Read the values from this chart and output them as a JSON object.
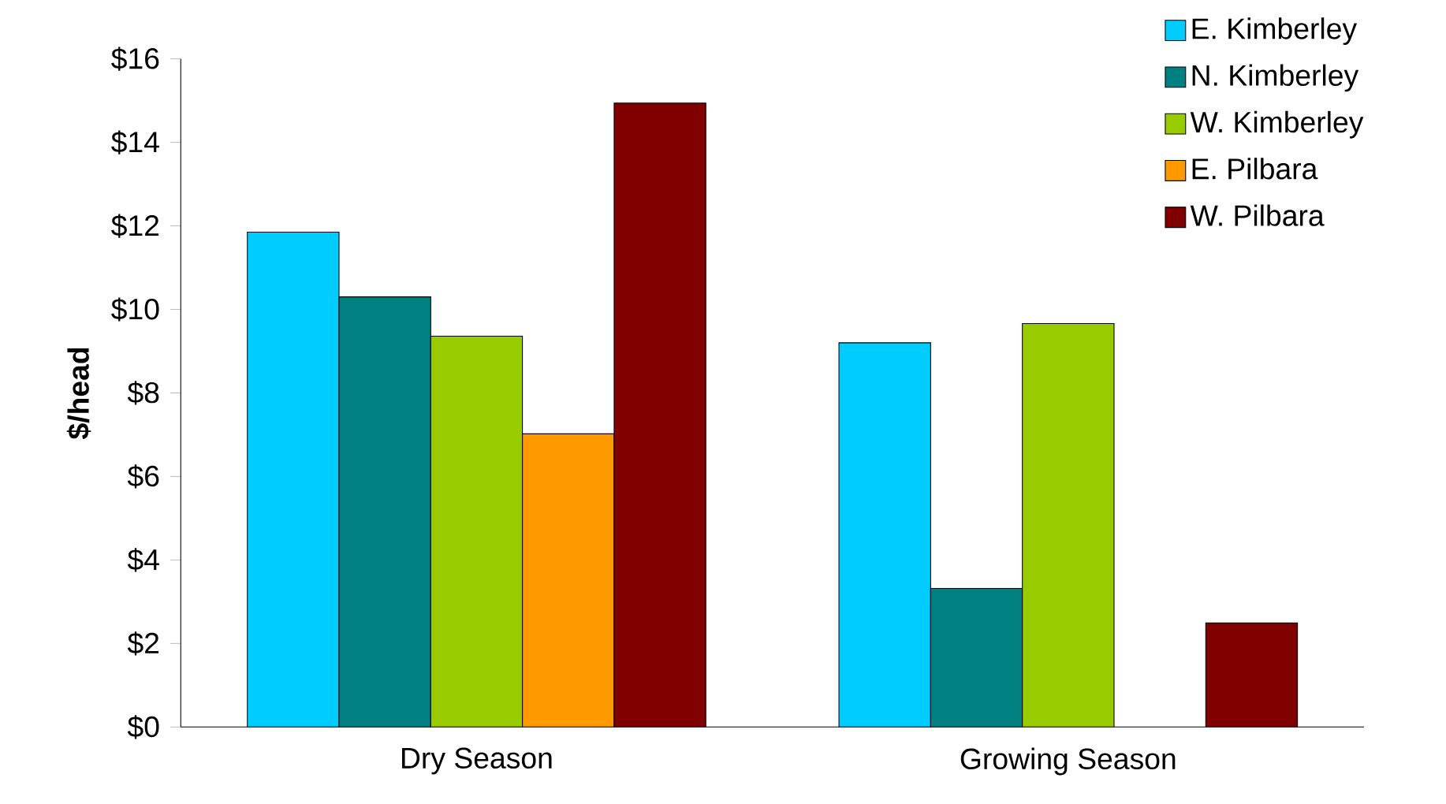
{
  "chart_data": {
    "type": "bar",
    "ylabel": "$/head",
    "categories": [
      "Dry Season",
      "Growing Season"
    ],
    "series": [
      {
        "name": "E. Kimberley",
        "color": "#00ccff",
        "values": [
          11.85,
          9.2
        ]
      },
      {
        "name": "N. Kimberley",
        "color": "#008080",
        "values": [
          10.3,
          3.32
        ]
      },
      {
        "name": "W. Kimberley",
        "color": "#99cc00",
        "values": [
          9.36,
          9.66
        ]
      },
      {
        "name": "E. Pilbara",
        "color": "#ff9900",
        "values": [
          7.02,
          null
        ]
      },
      {
        "name": "W. Pilbara",
        "color": "#800000",
        "values": [
          14.94,
          2.49
        ]
      }
    ],
    "ylim": [
      0,
      16
    ],
    "yticks": [
      {
        "value": 0,
        "label": "$0"
      },
      {
        "value": 2,
        "label": "$2"
      },
      {
        "value": 4,
        "label": "$4"
      },
      {
        "value": 6,
        "label": "$6"
      },
      {
        "value": 8,
        "label": "$8"
      },
      {
        "value": 10,
        "label": "$10"
      },
      {
        "value": 12,
        "label": "$12"
      },
      {
        "value": 14,
        "label": "$14"
      },
      {
        "value": 16,
        "label": "$16"
      }
    ],
    "grid": false,
    "legend": "top right"
  }
}
